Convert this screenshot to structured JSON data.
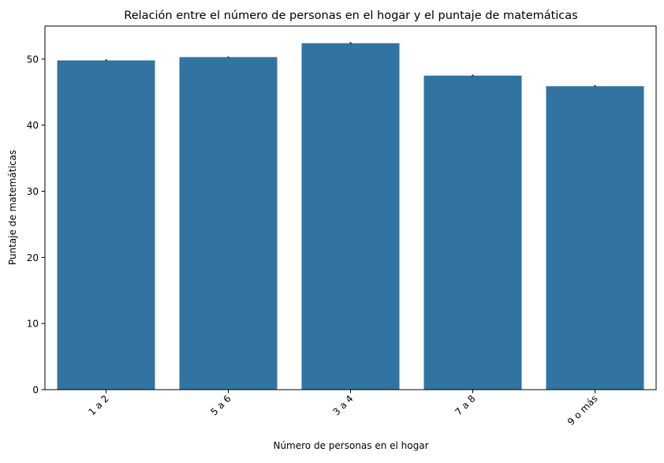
{
  "chart_data": {
    "type": "bar",
    "title": "Relación entre el número de personas en el hogar y el puntaje de matemáticas",
    "xlabel": "Número de personas en el hogar",
    "ylabel": "Puntaje de matemáticas",
    "categories": [
      "1 a 2",
      "5 a 6",
      "3 a 4",
      "7 a 8",
      "9 o más"
    ],
    "values": [
      49.8,
      50.3,
      52.4,
      47.5,
      45.9
    ],
    "error_bars": [
      0.15,
      0.1,
      0.15,
      0.15,
      0.15
    ],
    "ylim": [
      0,
      55
    ],
    "yticks": [
      0,
      10,
      20,
      30,
      40,
      50
    ],
    "xtick_rotation": 45,
    "grid": false,
    "colors": {
      "bar": "#3274a1",
      "error": "#424242"
    }
  }
}
